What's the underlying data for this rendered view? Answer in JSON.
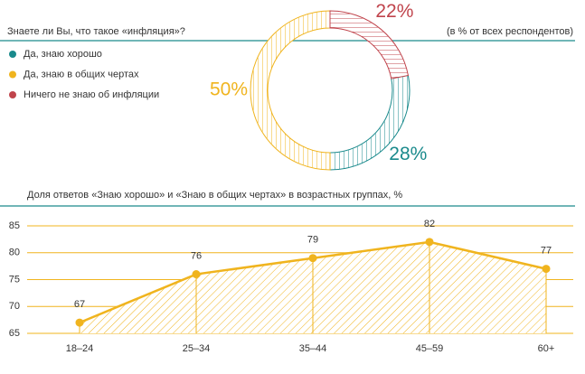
{
  "chart_data": [
    {
      "type": "pie",
      "title": "Знаете ли Вы, что такое «инфляция»?",
      "subtitle": "(в % от всех респондентов)",
      "categories": [
        "Да, знаю хорошо",
        "Да, знаю в общих чертах",
        "Ничего не знаю об инфляции"
      ],
      "values": [
        28,
        50,
        22
      ],
      "value_labels": [
        "28%",
        "50%",
        "22%"
      ],
      "colors": [
        "#1a8a8c",
        "#f0b41e",
        "#c0444c"
      ]
    },
    {
      "type": "line",
      "title": "Доля ответов «Знаю хорошо» и «Знаю в общих чертах» в возрастных группах, %",
      "categories": [
        "18–24",
        "25–34",
        "35–44",
        "45–59",
        "60+"
      ],
      "values": [
        67,
        76,
        79,
        82,
        77
      ],
      "color": "#f0b41e",
      "ylim": [
        65,
        85
      ],
      "yticks": [
        65,
        70,
        75,
        80,
        85
      ],
      "grid": true
    }
  ]
}
